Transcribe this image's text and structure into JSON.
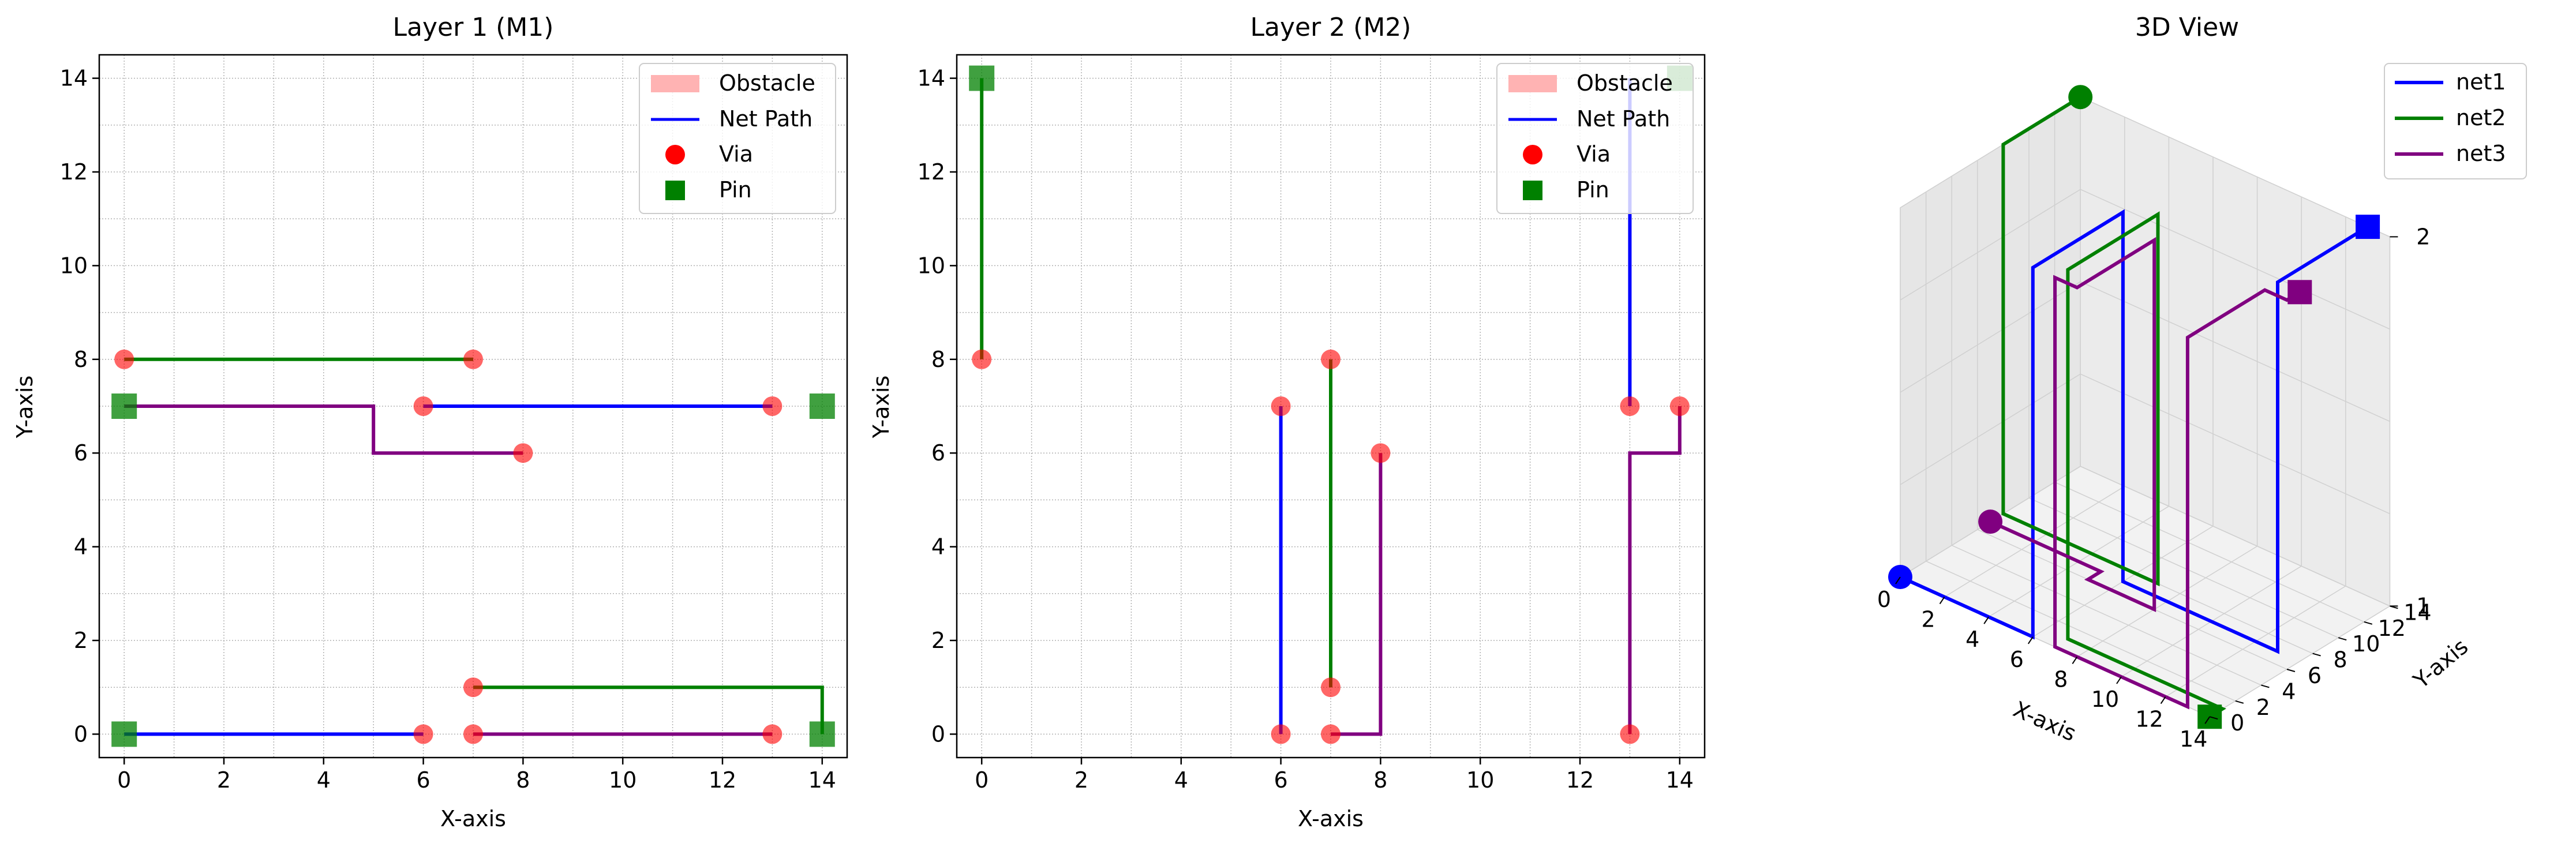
{
  "figure": {
    "panels": [
      {
        "title": "Layer 1 (M1)",
        "xlabel": "X-axis",
        "ylabel": "Y-axis"
      },
      {
        "title": "Layer 2 (M2)",
        "xlabel": "X-axis",
        "ylabel": "Y-axis"
      },
      {
        "title": "3D View",
        "xlabel": "X-axis",
        "ylabel": "Y-axis"
      }
    ],
    "legend_2d": [
      "Obstacle",
      "Net Path",
      "Via",
      "Pin"
    ],
    "legend_3d": [
      "net1",
      "net2",
      "net3"
    ]
  },
  "chart_data": [
    {
      "type": "line",
      "title": "Layer 1 (M1)",
      "xlabel": "X-axis",
      "ylabel": "Y-axis",
      "xlim": [
        -0.5,
        14.5
      ],
      "ylim": [
        -0.5,
        14.5
      ],
      "xticks": [
        0,
        2,
        4,
        6,
        8,
        10,
        12,
        14
      ],
      "yticks": [
        0,
        2,
        4,
        6,
        8,
        10,
        12,
        14
      ],
      "grid": true,
      "legend_position": "top-right",
      "legend": [
        "Obstacle",
        "Net Path",
        "Via",
        "Pin"
      ],
      "series": [
        {
          "name": "net1",
          "color": "#0000ff",
          "segments": [
            [
              [
                0,
                0
              ],
              [
                6,
                0
              ]
            ],
            [
              [
                6,
                7
              ],
              [
                13,
                7
              ]
            ]
          ]
        },
        {
          "name": "net2",
          "color": "#008000",
          "segments": [
            [
              [
                0,
                8
              ],
              [
                7,
                8
              ]
            ],
            [
              [
                7,
                1
              ],
              [
                14,
                1
              ],
              [
                14,
                0
              ]
            ]
          ]
        },
        {
          "name": "net3",
          "color": "#800080",
          "segments": [
            [
              [
                0,
                7
              ],
              [
                5,
                7
              ],
              [
                5,
                6
              ],
              [
                8,
                6
              ]
            ],
            [
              [
                7,
                0
              ],
              [
                13,
                0
              ]
            ]
          ]
        }
      ],
      "vias": [
        [
          0,
          8
        ],
        [
          7,
          8
        ],
        [
          6,
          7
        ],
        [
          13,
          7
        ],
        [
          8,
          6
        ],
        [
          7,
          1
        ],
        [
          6,
          0
        ],
        [
          7,
          0
        ],
        [
          13,
          0
        ]
      ],
      "pins": [
        [
          0,
          7
        ],
        [
          14,
          7
        ],
        [
          0,
          0
        ],
        [
          14,
          0
        ]
      ],
      "via_color": "#ff0000",
      "pin_color": "#008000",
      "obstacle_color": "#ffb3b3"
    },
    {
      "type": "line",
      "title": "Layer 2 (M2)",
      "xlabel": "X-axis",
      "ylabel": "Y-axis",
      "xlim": [
        -0.5,
        14.5
      ],
      "ylim": [
        -0.5,
        14.5
      ],
      "xticks": [
        0,
        2,
        4,
        6,
        8,
        10,
        12,
        14
      ],
      "yticks": [
        0,
        2,
        4,
        6,
        8,
        10,
        12,
        14
      ],
      "grid": true,
      "legend_position": "top-right",
      "legend": [
        "Obstacle",
        "Net Path",
        "Via",
        "Pin"
      ],
      "series": [
        {
          "name": "net1",
          "color": "#0000ff",
          "segments": [
            [
              [
                6,
                0
              ],
              [
                6,
                7
              ]
            ],
            [
              [
                13,
                7
              ],
              [
                13,
                14
              ]
            ]
          ]
        },
        {
          "name": "net2",
          "color": "#008000",
          "segments": [
            [
              [
                0,
                8
              ],
              [
                0,
                14
              ]
            ],
            [
              [
                7,
                1
              ],
              [
                7,
                8
              ]
            ]
          ]
        },
        {
          "name": "net3",
          "color": "#800080",
          "segments": [
            [
              [
                7,
                0
              ],
              [
                8,
                0
              ],
              [
                8,
                6
              ]
            ],
            [
              [
                13,
                0
              ],
              [
                13,
                6
              ],
              [
                14,
                6
              ],
              [
                14,
                7
              ]
            ]
          ]
        }
      ],
      "vias": [
        [
          0,
          8
        ],
        [
          6,
          7
        ],
        [
          7,
          8
        ],
        [
          8,
          6
        ],
        [
          13,
          7
        ],
        [
          14,
          7
        ],
        [
          6,
          0
        ],
        [
          7,
          0
        ],
        [
          7,
          1
        ],
        [
          13,
          0
        ]
      ],
      "pins": [
        [
          0,
          14
        ],
        [
          14,
          14
        ]
      ],
      "via_color": "#ff0000",
      "pin_color": "#008000",
      "obstacle_color": "#ffb3b3"
    },
    {
      "type": "line3d",
      "title": "3D View",
      "xlabel": "X-axis",
      "ylabel": "Y-axis",
      "xlim": [
        0,
        14
      ],
      "ylim": [
        0,
        14
      ],
      "zlim": [
        1,
        2
      ],
      "xticks": [
        0,
        2,
        4,
        6,
        8,
        10,
        12,
        14
      ],
      "yticks": [
        0,
        2,
        4,
        6,
        8,
        10,
        12,
        14
      ],
      "zticks": [
        1,
        2
      ],
      "legend_position": "top-right",
      "series": [
        {
          "name": "net1",
          "color": "#0000ff",
          "points": [
            [
              0,
              0,
              1
            ],
            [
              6,
              0,
              1
            ],
            [
              6,
              0,
              2
            ],
            [
              6,
              7,
              2
            ],
            [
              6,
              7,
              1
            ],
            [
              13,
              7,
              1
            ],
            [
              13,
              7,
              2
            ],
            [
              13,
              14,
              2
            ]
          ],
          "start": [
            0,
            0,
            1
          ],
          "end": [
            13,
            14,
            2
          ]
        },
        {
          "name": "net2",
          "color": "#008000",
          "points": [
            [
              14,
              0,
              1
            ],
            [
              14,
              1,
              1
            ],
            [
              7,
              1,
              1
            ],
            [
              7,
              1,
              2
            ],
            [
              7,
              8,
              2
            ],
            [
              7,
              8,
              1
            ],
            [
              0,
              8,
              1
            ],
            [
              0,
              8,
              2
            ],
            [
              0,
              14,
              2
            ]
          ],
          "start": [
            0,
            14,
            2
          ],
          "end": [
            14,
            0,
            1
          ]
        },
        {
          "name": "net3",
          "color": "#800080",
          "points": [
            [
              0,
              7,
              1
            ],
            [
              5,
              7,
              1
            ],
            [
              5,
              6,
              1
            ],
            [
              8,
              6,
              1
            ],
            [
              8,
              6,
              2
            ],
            [
              8,
              0,
              2
            ],
            [
              7,
              0,
              2
            ],
            [
              7,
              0,
              1
            ],
            [
              13,
              0,
              1
            ],
            [
              13,
              0,
              2
            ],
            [
              13,
              6,
              2
            ],
            [
              14,
              6,
              2
            ],
            [
              14,
              7,
              2
            ]
          ],
          "start": [
            0,
            7,
            1
          ],
          "end": [
            14,
            7,
            2
          ]
        }
      ]
    }
  ]
}
